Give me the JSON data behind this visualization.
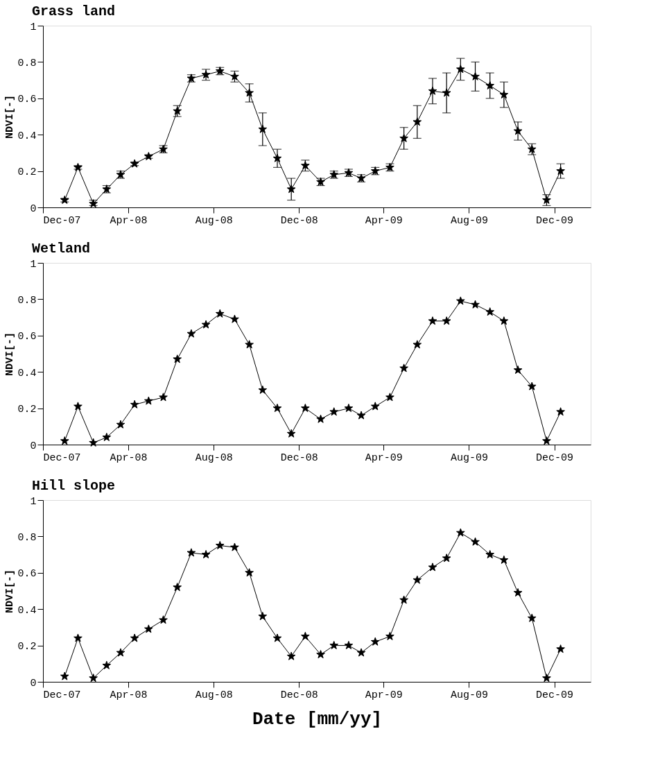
{
  "chart_data": [
    {
      "type": "line",
      "title": "Grass land",
      "ylabel": "NDVI[-]",
      "marker": "star",
      "line_style": "solid",
      "grid": false,
      "x": [
        "2008-01-01",
        "2008-01-20",
        "2008-02-11",
        "2008-03-01",
        "2008-03-21",
        "2008-04-10",
        "2008-04-30",
        "2008-05-21",
        "2008-06-10",
        "2008-06-30",
        "2008-07-21",
        "2008-08-10",
        "2008-08-31",
        "2008-09-21",
        "2008-10-10",
        "2008-10-31",
        "2008-11-20",
        "2008-12-10",
        "2009-01-01",
        "2009-01-20",
        "2009-02-10",
        "2009-02-28",
        "2009-03-20",
        "2009-04-10",
        "2009-04-30",
        "2009-05-19",
        "2009-06-10",
        "2009-06-30",
        "2009-07-20",
        "2009-08-10",
        "2009-08-31",
        "2009-09-20",
        "2009-10-10",
        "2009-10-30",
        "2009-11-20",
        "2009-12-10"
      ],
      "xlim": [
        "2007-12-01",
        "2010-01-22"
      ],
      "xticks": [
        {
          "value": "2007-12-01",
          "label": "Dec-07"
        },
        {
          "value": "2008-04-01",
          "label": "Apr-08"
        },
        {
          "value": "2008-08-01",
          "label": "Aug-08"
        },
        {
          "value": "2008-12-01",
          "label": "Dec-08"
        },
        {
          "value": "2009-04-01",
          "label": "Apr-09"
        },
        {
          "value": "2009-08-01",
          "label": "Aug-09"
        },
        {
          "value": "2009-12-01",
          "label": "Dec-09"
        }
      ],
      "ylim": [
        0,
        1
      ],
      "yticks": [
        0,
        0.2,
        0.4,
        0.6,
        0.8,
        1
      ],
      "series": [
        {
          "color": "#000000",
          "values": [
            0.04,
            0.22,
            0.02,
            0.1,
            0.18,
            0.24,
            0.28,
            0.32,
            0.53,
            0.71,
            0.73,
            0.75,
            0.72,
            0.63,
            0.43,
            0.27,
            0.1,
            0.23,
            0.14,
            0.18,
            0.19,
            0.16,
            0.2,
            0.22,
            0.38,
            0.47,
            0.64,
            0.63,
            0.76,
            0.72,
            0.67,
            0.62,
            0.42,
            0.32,
            0.04,
            0.2
          ],
          "errors": [
            0.01,
            0.01,
            [
              0.01,
              0.04
            ],
            0.02,
            0.02,
            0.01,
            0.01,
            0.02,
            0.03,
            0.02,
            0.03,
            0.02,
            0.03,
            0.05,
            0.09,
            0.05,
            0.06,
            0.03,
            0.02,
            0.02,
            0.02,
            0.02,
            0.02,
            0.02,
            0.06,
            0.09,
            0.07,
            0.11,
            0.06,
            0.08,
            0.07,
            0.07,
            0.05,
            0.03,
            0.03,
            0.04
          ]
        }
      ]
    },
    {
      "type": "line",
      "title": "Wetland",
      "ylabel": "NDVI[-]",
      "marker": "star",
      "line_style": "solid",
      "grid": false,
      "x": [
        "2008-01-01",
        "2008-01-20",
        "2008-02-11",
        "2008-03-01",
        "2008-03-21",
        "2008-04-10",
        "2008-04-30",
        "2008-05-21",
        "2008-06-10",
        "2008-06-30",
        "2008-07-21",
        "2008-08-10",
        "2008-08-31",
        "2008-09-21",
        "2008-10-10",
        "2008-10-31",
        "2008-11-20",
        "2008-12-10",
        "2009-01-01",
        "2009-01-20",
        "2009-02-10",
        "2009-02-28",
        "2009-03-20",
        "2009-04-10",
        "2009-04-30",
        "2009-05-19",
        "2009-06-10",
        "2009-06-30",
        "2009-07-20",
        "2009-08-10",
        "2009-08-31",
        "2009-09-20",
        "2009-10-10",
        "2009-10-30",
        "2009-11-20",
        "2009-12-10"
      ],
      "xlim": [
        "2007-12-01",
        "2010-01-22"
      ],
      "xticks": [
        {
          "value": "2007-12-01",
          "label": "Dec-07"
        },
        {
          "value": "2008-04-01",
          "label": "Apr-08"
        },
        {
          "value": "2008-08-01",
          "label": "Aug-08"
        },
        {
          "value": "2008-12-01",
          "label": "Dec-08"
        },
        {
          "value": "2009-04-01",
          "label": "Apr-09"
        },
        {
          "value": "2009-08-01",
          "label": "Aug-09"
        },
        {
          "value": "2009-12-01",
          "label": "Dec-09"
        }
      ],
      "ylim": [
        0,
        1
      ],
      "yticks": [
        0,
        0.2,
        0.4,
        0.6,
        0.8,
        1
      ],
      "series": [
        {
          "color": "#000000",
          "values": [
            0.02,
            0.21,
            0.01,
            0.04,
            0.11,
            0.22,
            0.24,
            0.26,
            0.47,
            0.61,
            0.66,
            0.72,
            0.69,
            0.55,
            0.3,
            0.2,
            0.06,
            0.2,
            0.14,
            0.18,
            0.2,
            0.16,
            0.21,
            0.26,
            0.42,
            0.55,
            0.68,
            0.68,
            0.79,
            0.77,
            0.73,
            0.68,
            0.41,
            0.32,
            0.02,
            0.18
          ]
        }
      ]
    },
    {
      "type": "line",
      "title": "Hill slope",
      "ylabel": "NDVI[-]",
      "xlabel": "Date [mm/yy]",
      "marker": "star",
      "line_style": "solid",
      "grid": false,
      "x": [
        "2008-01-01",
        "2008-01-20",
        "2008-02-11",
        "2008-03-01",
        "2008-03-21",
        "2008-04-10",
        "2008-04-30",
        "2008-05-21",
        "2008-06-10",
        "2008-06-30",
        "2008-07-21",
        "2008-08-10",
        "2008-08-31",
        "2008-09-21",
        "2008-10-10",
        "2008-10-31",
        "2008-11-20",
        "2008-12-10",
        "2009-01-01",
        "2009-01-20",
        "2009-02-10",
        "2009-02-28",
        "2009-03-20",
        "2009-04-10",
        "2009-04-30",
        "2009-05-19",
        "2009-06-10",
        "2009-06-30",
        "2009-07-20",
        "2009-08-10",
        "2009-08-31",
        "2009-09-20",
        "2009-10-10",
        "2009-10-30",
        "2009-11-20",
        "2009-12-10"
      ],
      "xlim": [
        "2007-12-01",
        "2010-01-22"
      ],
      "xticks": [
        {
          "value": "2007-12-01",
          "label": "Dec-07"
        },
        {
          "value": "2008-04-01",
          "label": "Apr-08"
        },
        {
          "value": "2008-08-01",
          "label": "Aug-08"
        },
        {
          "value": "2008-12-01",
          "label": "Dec-08"
        },
        {
          "value": "2009-04-01",
          "label": "Apr-09"
        },
        {
          "value": "2009-08-01",
          "label": "Aug-09"
        },
        {
          "value": "2009-12-01",
          "label": "Dec-09"
        }
      ],
      "ylim": [
        0,
        1
      ],
      "yticks": [
        0,
        0.2,
        0.4,
        0.6,
        0.8,
        1
      ],
      "series": [
        {
          "color": "#000000",
          "values": [
            0.03,
            0.24,
            0.02,
            0.09,
            0.16,
            0.24,
            0.29,
            0.34,
            0.52,
            0.71,
            0.7,
            0.75,
            0.74,
            0.6,
            0.36,
            0.24,
            0.14,
            0.25,
            0.15,
            0.2,
            0.2,
            0.16,
            0.22,
            0.25,
            0.45,
            0.56,
            0.63,
            0.68,
            0.82,
            0.77,
            0.7,
            0.67,
            0.49,
            0.35,
            0.02,
            0.18
          ]
        }
      ]
    }
  ]
}
